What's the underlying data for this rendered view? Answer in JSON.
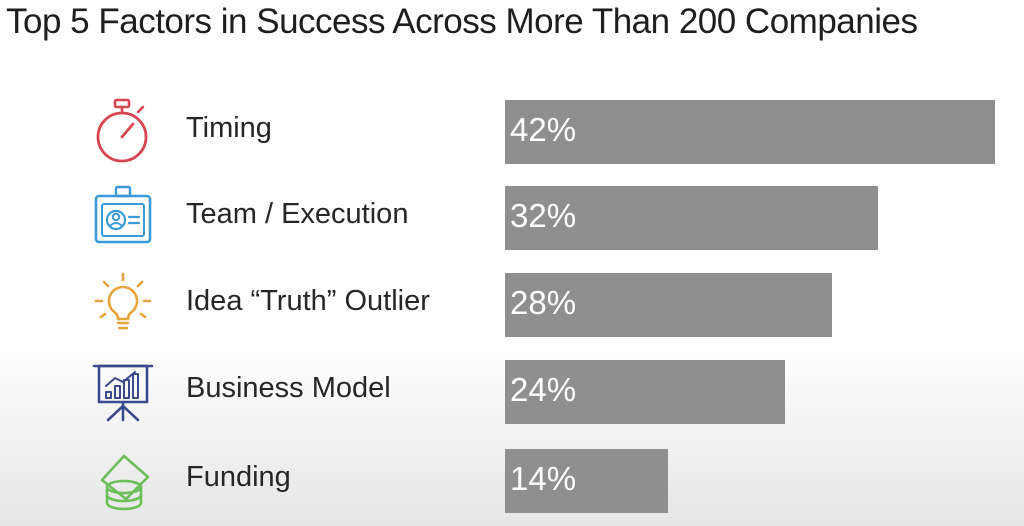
{
  "title": "Top 5 Factors in Success Across More Than 200 Companies",
  "colors": {
    "bar": "#8f8f8f",
    "bar_text": "#ffffff",
    "timing_icon": "#d64550",
    "team_icon": "#3a9ad9",
    "idea_icon": "#e8a33a",
    "business_icon": "#3a4a8c",
    "funding_icon": "#6bbf59"
  },
  "chart_data": {
    "type": "bar",
    "orientation": "horizontal",
    "title": "Top 5 Factors in Success Across More Than 200 Companies",
    "categories": [
      "Timing",
      "Team / Execution",
      "Idea “Truth” Outlier",
      "Business Model",
      "Funding"
    ],
    "values": [
      42,
      32,
      28,
      24,
      14
    ],
    "value_labels": [
      "42%",
      "32%",
      "28%",
      "24%",
      "14%"
    ],
    "icons": [
      "stopwatch-icon",
      "id-badge-icon",
      "lightbulb-icon",
      "presentation-chart-icon",
      "coins-icon"
    ],
    "xlim": [
      0,
      42
    ],
    "grid": false,
    "legend": "none"
  }
}
